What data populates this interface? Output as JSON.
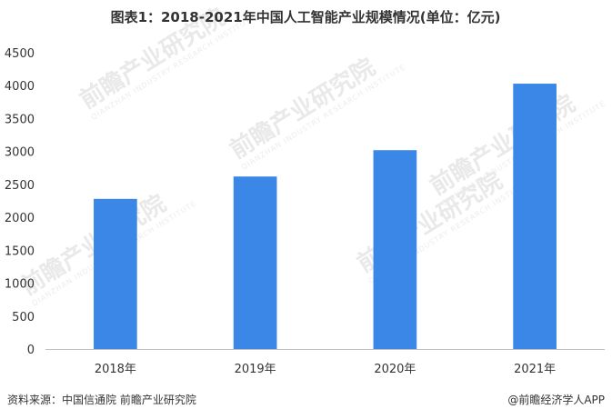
{
  "chart_data": {
    "type": "bar",
    "title": "图表1：2018-2021年中国人工智能产业规模情况(单位：亿元)",
    "categories": [
      "2018年",
      "2019年",
      "2020年",
      "2021年"
    ],
    "values": [
      2280,
      2620,
      3020,
      4030
    ],
    "ylim": [
      0,
      4500
    ],
    "yticks": [
      0,
      500,
      1000,
      1500,
      2000,
      2500,
      3000,
      3500,
      4000,
      4500
    ],
    "xlabel": "",
    "ylabel": "",
    "bar_color": "#3a87e8",
    "grid": false
  },
  "footer": {
    "source": "资料来源：中国信通院 前瞻产业研究院",
    "brand": "@前瞻经济学人APP"
  },
  "watermark": {
    "text": "前瞻产业研究院",
    "sub": "QIANZHAN INDUSTRY RESEARCH INSTITUTE"
  }
}
